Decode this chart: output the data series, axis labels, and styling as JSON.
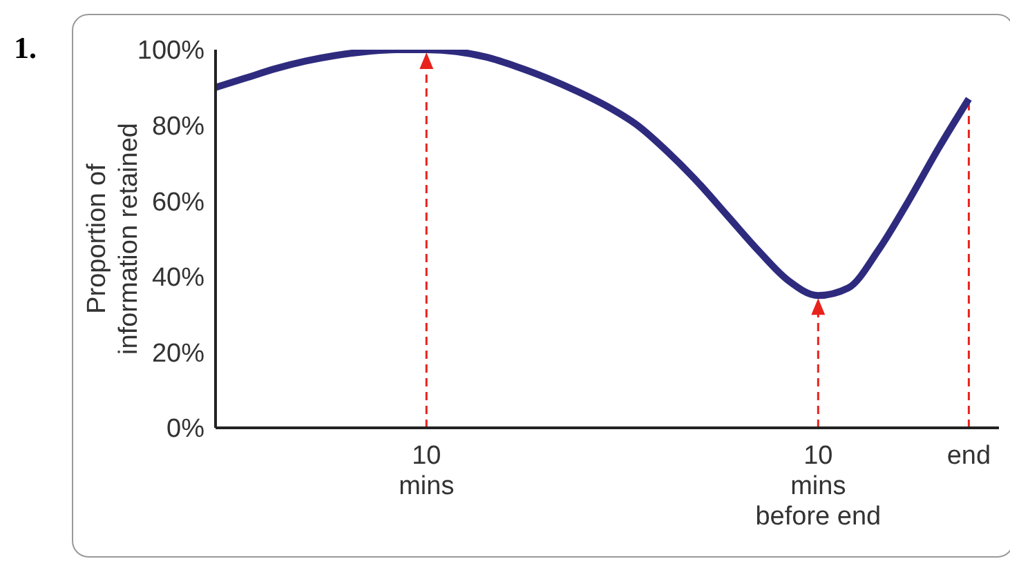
{
  "chart_data": {
    "type": "line",
    "ylabel": "Proportion of information retained",
    "annotations": [
      "1."
    ],
    "categories": [
      null,
      null,
      null,
      null,
      null,
      null,
      null,
      "10\nmins",
      null,
      null,
      null,
      null,
      null,
      null,
      null,
      null,
      null,
      null,
      null,
      null,
      "10\nmins\nbefore end",
      null,
      null,
      null,
      null,
      "end",
      null
    ],
    "series": [
      {
        "color": "#2e2b7e",
        "values": [
          90,
          92.5,
          95,
          97,
          98.5,
          99.5,
          100,
          100,
          99.5,
          98,
          95.5,
          92.5,
          89,
          85,
          80,
          73,
          65,
          56,
          47,
          39,
          35,
          37,
          47,
          60,
          74,
          87,
          null
        ]
      }
    ],
    "ylim": [
      0,
      100
    ],
    "yticks": [
      {
        "value": 0,
        "label": "0%"
      },
      {
        "value": 20,
        "label": "20%"
      },
      {
        "value": 40,
        "label": "40%"
      },
      {
        "value": 60,
        "label": "60%"
      },
      {
        "value": 80,
        "label": "80%"
      },
      {
        "value": 100,
        "label": "100%"
      }
    ],
    "grid": false,
    "legend": false,
    "marker": "none",
    "line_style": "solid",
    "ref_lines": [
      {
        "axis": "x",
        "value": "10\nmins",
        "color": "#e8221c",
        "line_style": "dashed"
      },
      {
        "axis": "x",
        "value": "10\nmins\nbefore end",
        "color": "#e8221c",
        "line_style": "dashed"
      },
      {
        "axis": "x",
        "value": "end",
        "color": "#e8221c",
        "line_style": "dashed"
      }
    ]
  }
}
